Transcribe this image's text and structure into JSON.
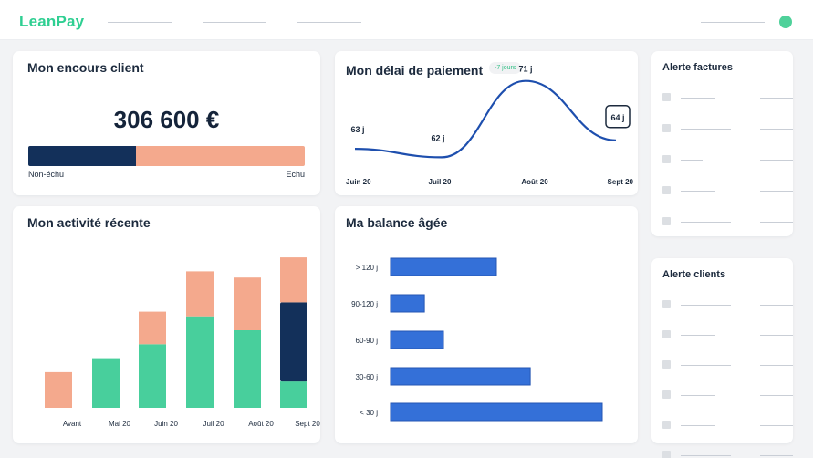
{
  "header": {
    "logo": "LeanPay",
    "status_color": "#4fd19a"
  },
  "encours": {
    "title": "Mon encours client",
    "amount": "306 600 €",
    "non_echu_label": "Non-échu",
    "echu_label": "Echu",
    "non_echu_share": 0.39,
    "colors": {
      "non_echu": "#13305a",
      "echu": "#f4a98d"
    }
  },
  "delai": {
    "title": "Mon délai de paiement",
    "badge": "-7 jours",
    "chart_data": {
      "type": "line",
      "x": [
        "Juin 20",
        "Juil 20",
        "Août 20",
        "Sept 20"
      ],
      "series": [
        {
          "values": [
            63,
            62,
            71,
            64
          ],
          "value_labels": [
            "63 j",
            "62 j",
            "71 j",
            "64 j"
          ]
        }
      ],
      "color": "#1e4fae"
    }
  },
  "activite": {
    "title": "Mon activité récente",
    "chart_data": {
      "type": "bar",
      "stacked": true,
      "categories": [
        "Avant",
        "Mai 20",
        "Juin 20",
        "Juil 20",
        "Août 20",
        "Sept 20"
      ],
      "series": [
        {
          "values": [
            0,
            32,
            41,
            59,
            50,
            17
          ],
          "color": "#48cf9c"
        },
        {
          "values": [
            0,
            0,
            0,
            0,
            0,
            51
          ],
          "color": "#13305a"
        },
        {
          "values": [
            23,
            0,
            21,
            29,
            34,
            29
          ],
          "color": "#f4a98d"
        }
      ],
      "ylim": [
        0,
        100
      ],
      "grid": false
    }
  },
  "balance": {
    "title": "Ma balance âgée",
    "chart_data": {
      "type": "bar",
      "orientation": "horizontal",
      "categories": [
        "> 120 j",
        "90-120 j",
        "60-90 j",
        "30-60 j",
        "< 30 j"
      ],
      "values": [
        50,
        16,
        25,
        66,
        100
      ],
      "xlim": [
        0,
        100
      ],
      "color": "#3470d8"
    }
  },
  "alerte_factures": {
    "title": "Alerte factures",
    "rows": [
      1,
      2,
      3,
      4,
      5
    ]
  },
  "alerte_clients": {
    "title": "Alerte clients",
    "rows": [
      1,
      2,
      3,
      4,
      5,
      6
    ]
  }
}
